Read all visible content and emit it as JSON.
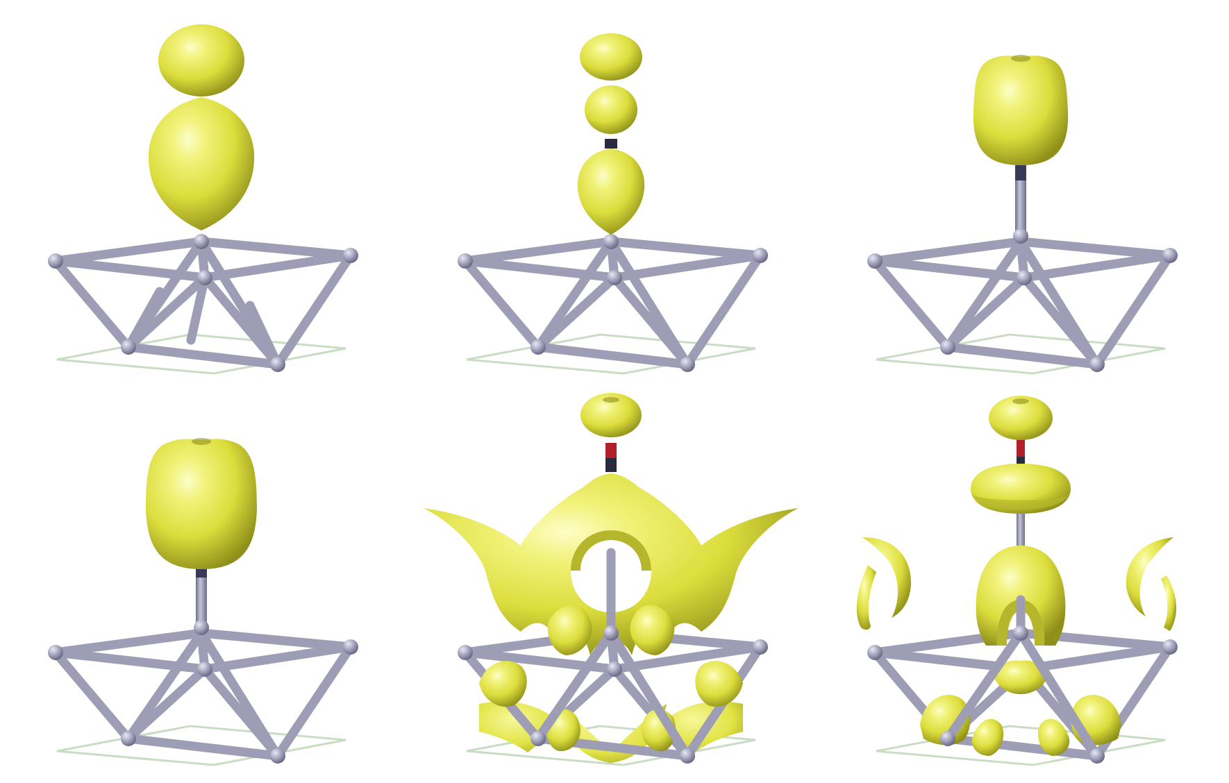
{
  "figure": {
    "description_colors": {
      "background": "#ffffff",
      "isosurface": "#e6e84a",
      "isosurface_highlight": "#fbfcb6",
      "isosurface_shadow": "#8f901a",
      "bond": "#9d9db5",
      "bond_dark": "#6b6b86",
      "atom": "#a7a7c0",
      "cell_outline": "#c9dcc4",
      "adsorbate_bond_dark": "#2a2a40",
      "adsorbate_bond_red": "#b0202a"
    },
    "panels": [
      {
        "name": "panel-top-left",
        "variant": "lobe-top-pear"
      },
      {
        "name": "panel-top-middle",
        "variant": "three-lobes"
      },
      {
        "name": "panel-top-right",
        "variant": "capsule-high"
      },
      {
        "name": "panel-bottom-left",
        "variant": "capsule-low"
      },
      {
        "name": "panel-bottom-middle",
        "variant": "ring-with-skirt"
      },
      {
        "name": "panel-bottom-right",
        "variant": "two-rings-with-lobes"
      }
    ]
  }
}
